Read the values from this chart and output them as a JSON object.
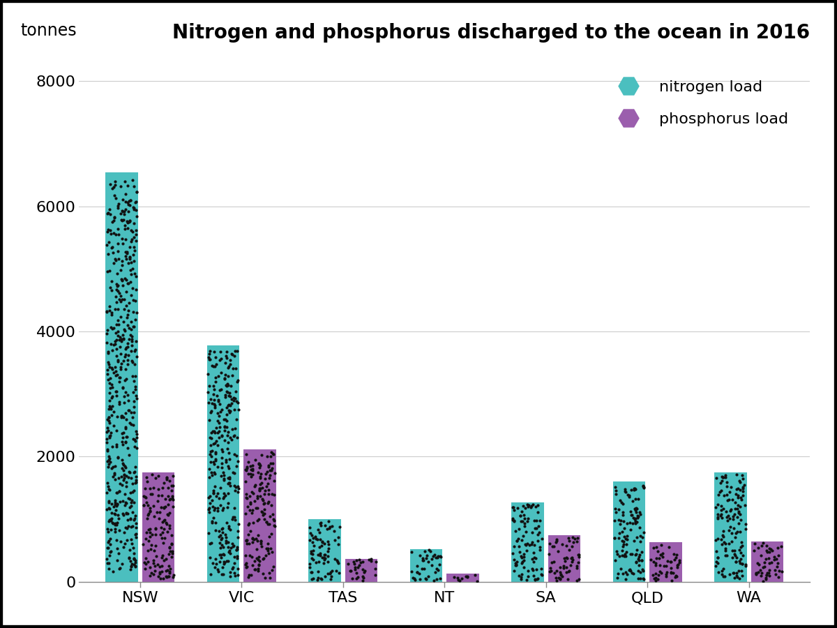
{
  "title": "Nitrogen and phosphorus discharged to the ocean in 2016",
  "ylabel": "tonnes",
  "states": [
    "NSW",
    "VIC",
    "TAS",
    "NT",
    "SA",
    "QLD",
    "WA"
  ],
  "nitrogen": [
    6550,
    3780,
    1000,
    520,
    1270,
    1600,
    1750
  ],
  "phosphorus": [
    1750,
    2120,
    370,
    130,
    750,
    630,
    640
  ],
  "nitrogen_color": "#4BBFBF",
  "phosphorus_color": "#9B5EAD",
  "dot_color": "#111111",
  "background_color": "#ffffff",
  "bar_width": 0.32,
  "bar_gap": 0.04,
  "ylim": [
    0,
    8500
  ],
  "yticks": [
    0,
    2000,
    4000,
    6000,
    8000
  ],
  "title_fontsize": 20,
  "label_fontsize": 17,
  "tick_fontsize": 16,
  "legend_fontsize": 16,
  "border_color": "#000000",
  "border_linewidth": 6,
  "dot_density": 80,
  "dot_size": 3.0
}
